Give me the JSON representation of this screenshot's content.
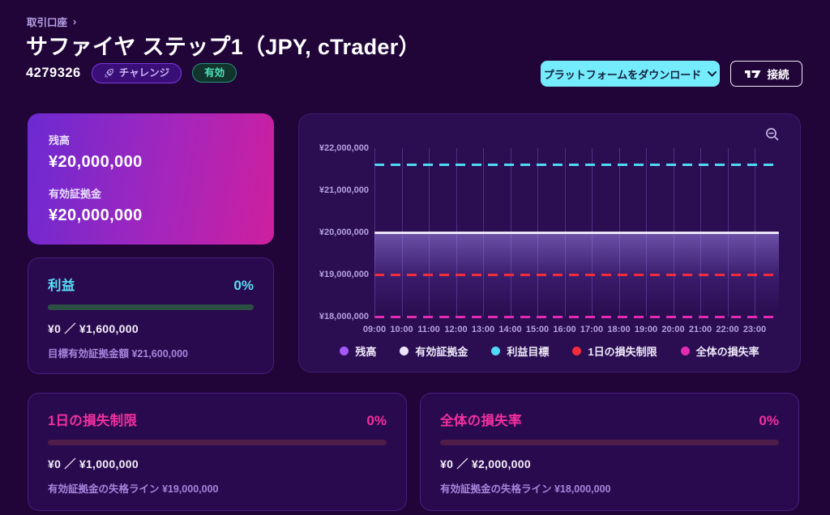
{
  "header": {
    "breadcrumb": "取引口座",
    "breadcrumb_chevron": "›",
    "title": "サファイヤ ステップ1（JPY, cTrader）",
    "account_id": "4279326",
    "challenge_badge": "チャレンジ",
    "active_badge": "有効",
    "download_button": "プラットフォームをダウンロード",
    "connect_button": "接続"
  },
  "balance_card": {
    "balance_label": "残高",
    "balance_value": "¥20,000,000",
    "equity_label": "有効証拠金",
    "equity_value": "¥20,000,000"
  },
  "profit_card": {
    "title": "利益",
    "percent": "0%",
    "percent_value": 0,
    "amounts": "¥0 ／ ¥1,600,000",
    "target": "目標有効証拠金額 ¥21,600,000"
  },
  "daily_loss_card": {
    "title": "1日の損失制限",
    "percent": "0%",
    "percent_value": 0,
    "amounts": "¥0 ／ ¥1,000,000",
    "threshold": "有効証拠金の失格ライン ¥19,000,000"
  },
  "total_loss_card": {
    "title": "全体の損失率",
    "percent": "0%",
    "percent_value": 0,
    "amounts": "¥0 ／ ¥2,000,000",
    "threshold": "有効証拠金の失格ライン ¥18,000,000"
  },
  "chart_data": {
    "type": "line",
    "x": [
      "09:00",
      "10:00",
      "11:00",
      "12:00",
      "13:00",
      "14:00",
      "15:00",
      "16:00",
      "17:00",
      "18:00",
      "19:00",
      "20:00",
      "21:00",
      "22:00",
      "23:00"
    ],
    "ylim": [
      18000000,
      22000000
    ],
    "yticks": [
      {
        "label": "¥22,000,000",
        "value": 22000000
      },
      {
        "label": "¥21,000,000",
        "value": 21000000
      },
      {
        "label": "¥20,000,000",
        "value": 20000000
      },
      {
        "label": "¥19,000,000",
        "value": 19000000
      },
      {
        "label": "¥18,000,000",
        "value": 18000000
      }
    ],
    "series": [
      {
        "name": "残高",
        "value": 20000000,
        "color": "#a558f7",
        "style": "solid"
      },
      {
        "name": "有効証拠金",
        "value": 20000000,
        "color": "#ece5f9",
        "style": "solid",
        "fill_below": true
      },
      {
        "name": "利益目標",
        "value": 21600000,
        "color": "#4fd9f4",
        "style": "dashed"
      },
      {
        "name": "1日の損失制限",
        "value": 19000000,
        "color": "#f32c3c",
        "style": "dashed"
      },
      {
        "name": "全体の損失率",
        "value": 18000000,
        "color": "#e22bb2",
        "style": "dashed"
      }
    ],
    "grid": "vertical",
    "legend_position": "bottom"
  }
}
